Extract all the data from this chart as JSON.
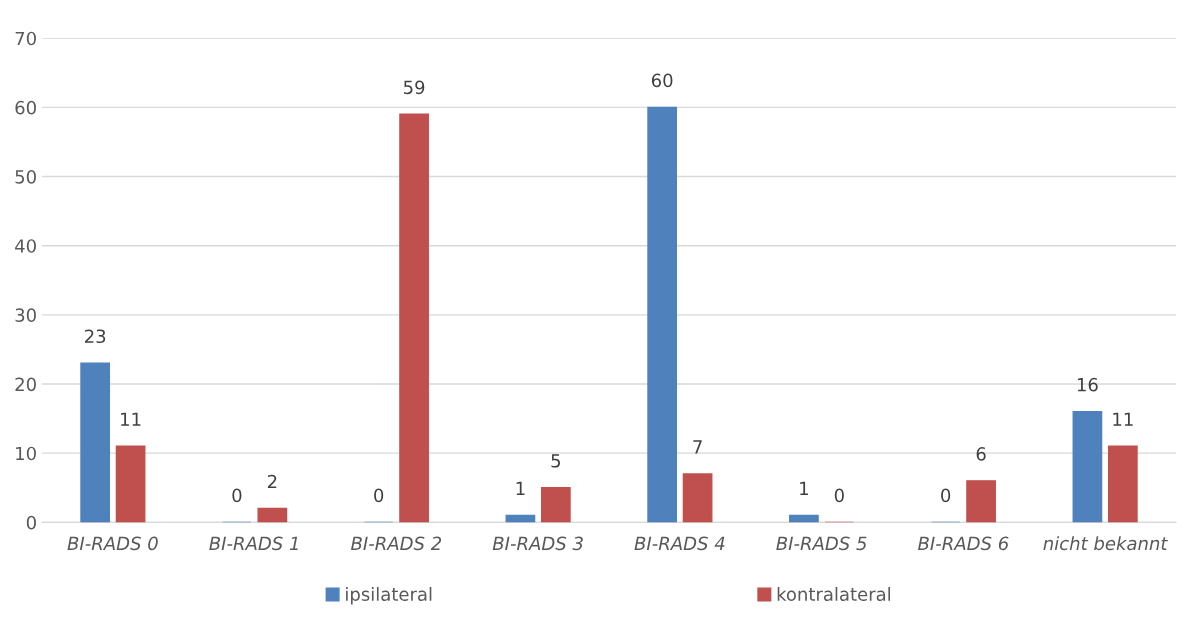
{
  "chart_data": {
    "type": "bar",
    "categories": [
      "BI-RADS 0",
      "BI-RADS 1",
      "BI-RADS 2",
      "BI-RADS 3",
      "BI-RADS 4",
      "BI-RADS 5",
      "BI-RADS 6",
      "nicht bekannt"
    ],
    "series": [
      {
        "name": "ipsilateral",
        "color": "#4f81bd",
        "values": [
          23,
          0,
          0,
          1,
          60,
          1,
          0,
          16
        ]
      },
      {
        "name": "kontralateral",
        "color": "#c0504d",
        "values": [
          11,
          2,
          59,
          5,
          7,
          0,
          6,
          11
        ]
      }
    ],
    "ylim": [
      0,
      70
    ],
    "yticks": [
      0,
      10,
      20,
      30,
      40,
      50,
      60,
      70
    ],
    "grid": "y",
    "legend": "bottom",
    "data_labels": true
  }
}
